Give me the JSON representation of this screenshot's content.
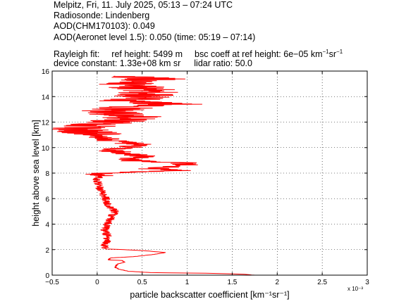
{
  "header": {
    "line1": "Melpitz, Fri, 11. July 2025, 05:13 – 07:24 UTC",
    "line2": "Radiosonde: Lindenberg",
    "line3": "AOD(CHM170103): 0.049",
    "line4": "AOD(Aeronet level 1.5): 0.050   (time: 05:19 – 07:14)",
    "rayleigh_label": "Rayleigh fit:",
    "ref_height": "ref height: 5499 m",
    "bsc_coeff_prefix": "bsc coeff at ref height: 6e−05 km",
    "bsc_sup1": "−1",
    "bsc_mid": "sr",
    "bsc_sup2": "−1",
    "device_constant": "device constant: 1.33e+08 km sr",
    "lidar_ratio": "lidar ratio: 50.0"
  },
  "chart_data": {
    "type": "line",
    "xlabel": "particle backscatter coefficient [km⁻¹sr⁻¹]",
    "ylabel": "height above sea level [km]",
    "x_exponent_label": "x 10⁻³",
    "xlim": [
      -0.5,
      3.0
    ],
    "ylim": [
      0,
      16
    ],
    "xticks": [
      -0.5,
      0,
      0.5,
      1,
      1.5,
      2,
      2.5,
      3
    ],
    "xtick_labels": [
      "−0.5",
      "0",
      "0.5",
      "1",
      "1.5",
      "2",
      "2.5",
      "3"
    ],
    "yticks": [
      0,
      2,
      4,
      6,
      8,
      10,
      12,
      14,
      16
    ],
    "ytick_labels": [
      "0",
      "2",
      "4",
      "6",
      "8",
      "10",
      "12",
      "14",
      "16"
    ],
    "grid": true,
    "series_color": "#ff0000",
    "profile_key_points": [
      [
        1.75,
        0.0
      ],
      [
        1.6,
        0.08
      ],
      [
        1.2,
        0.15
      ],
      [
        0.6,
        0.2
      ],
      [
        0.35,
        0.3
      ],
      [
        0.25,
        0.45
      ],
      [
        0.2,
        0.6
      ],
      [
        0.22,
        0.85
      ],
      [
        0.3,
        1.0
      ],
      [
        0.28,
        1.15
      ],
      [
        0.12,
        1.2
      ],
      [
        0.15,
        1.35
      ],
      [
        0.4,
        1.45
      ],
      [
        0.6,
        1.6
      ],
      [
        0.72,
        1.72
      ],
      [
        0.75,
        1.78
      ],
      [
        0.55,
        1.9
      ],
      [
        0.3,
        2.0
      ],
      [
        0.1,
        2.05
      ],
      [
        0.08,
        2.2
      ],
      [
        0.1,
        2.6
      ],
      [
        0.12,
        3.0
      ],
      [
        0.08,
        3.5
      ],
      [
        0.12,
        4.0
      ],
      [
        0.15,
        4.5
      ],
      [
        0.2,
        5.0
      ],
      [
        0.12,
        5.5
      ],
      [
        0.1,
        6.0
      ],
      [
        0.05,
        6.5
      ],
      [
        0.02,
        7.0
      ],
      [
        0.0,
        7.5
      ],
      [
        0.05,
        8.0
      ],
      [
        0.9,
        8.2
      ],
      [
        0.6,
        8.35
      ],
      [
        0.95,
        8.6
      ],
      [
        1.0,
        8.8
      ],
      [
        0.5,
        8.9
      ],
      [
        0.3,
        9.1
      ],
      [
        0.5,
        9.3
      ],
      [
        0.3,
        9.6
      ],
      [
        0.1,
        9.8
      ],
      [
        0.3,
        10.0
      ],
      [
        0.5,
        10.2
      ],
      [
        0.2,
        10.5
      ],
      [
        0.0,
        11.0
      ],
      [
        -0.2,
        11.5
      ],
      [
        0.2,
        12.0
      ],
      [
        0.4,
        12.4
      ],
      [
        0.1,
        12.8
      ],
      [
        0.4,
        13.2
      ],
      [
        0.9,
        13.4
      ],
      [
        0.3,
        13.6
      ],
      [
        0.5,
        14.0
      ],
      [
        0.6,
        14.5
      ],
      [
        0.3,
        15.0
      ],
      [
        0.4,
        15.2
      ],
      [
        0.7,
        15.4
      ],
      [
        0.2,
        15.6
      ]
    ]
  }
}
